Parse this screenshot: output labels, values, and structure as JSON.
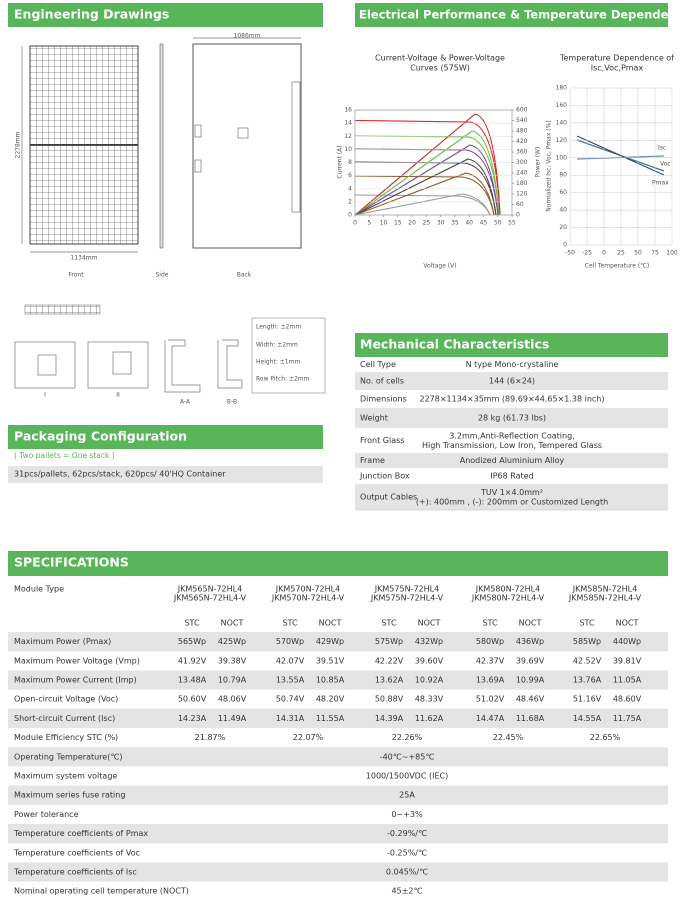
{
  "engineering_drawings": {
    "title": "Engineering Drawings",
    "dims": {
      "width_top": "1086mm",
      "height": "2278mm",
      "width_bottom": "1134mm"
    },
    "views": [
      "Front",
      "Side",
      "Back"
    ],
    "tolerances": [
      "Length: ±2mm",
      "Width: ±2mm",
      "Height: ±1mm",
      "Row Pitch: ±2mm"
    ],
    "detail_labels": [
      "I",
      "II",
      "A-A",
      "B-B"
    ]
  },
  "electrical": {
    "title": "Electrical Performance & Temperature Dependence",
    "iv_chart": {
      "title": [
        "Current-Voltage & Power-Voltage",
        "Curves (575W)"
      ],
      "y_label": "Current (A)",
      "y2_label": "Power (W)",
      "x_label": "Voltage (V)",
      "yticks": [
        0,
        2,
        4,
        6,
        8,
        10,
        12,
        14,
        16
      ],
      "y2ticks": [
        0,
        60,
        120,
        180,
        240,
        300,
        360,
        420,
        480,
        540,
        600
      ],
      "xticks": [
        0,
        5,
        10,
        15,
        20,
        25,
        30,
        35,
        40,
        45,
        50,
        55
      ]
    },
    "temp_chart": {
      "title": [
        "Temperature Dependence of",
        "Isc,Voc,Pmax"
      ],
      "y_label": "Normalized Isc, Voc, Pmax (%)",
      "x_label": "Cell Temperature (℃)",
      "yticks": [
        0,
        20,
        40,
        60,
        80,
        100,
        120,
        140,
        160,
        180
      ],
      "xticks": [
        -50,
        -25,
        0,
        25,
        50,
        75,
        100
      ],
      "series_labels": [
        "Isc",
        "Voc",
        "Pmax"
      ]
    }
  },
  "packaging": {
    "title": "Packaging Configuration",
    "note": "( Two pallets = One stack )",
    "text": "31pcs/pallets, 62pcs/stack, 620pcs/ 40'HQ Container"
  },
  "mechanical": {
    "title": "Mechanical Characteristics",
    "rows": [
      [
        "Cell Type",
        "N type Mono-crystaline"
      ],
      [
        "No. of cells",
        "144 (6×24)"
      ],
      [
        "Dimensions",
        "2278×1134×35mm (89.69×44.65×1.38 inch)"
      ],
      [
        "Weight",
        "28 kg (61.73 lbs)"
      ],
      [
        "Front Glass",
        "3.2mm,Anti-Reflection Coating,",
        "High Transmission, Low Iron, Tempered Glass"
      ],
      [
        "Frame",
        "Anodized Aluminium Alloy"
      ],
      [
        "Junction Box",
        "IP68 Rated"
      ],
      [
        "Output Cables",
        "TUV 1×4.0mm²",
        "(+): 400mm , (-): 200mm or Customized Length"
      ]
    ]
  },
  "specifications": {
    "title": "SPECIFICATIONS",
    "module_type_label": "Module Type",
    "models": [
      [
        "JKM565N-72HL4",
        "JKM565N-72HL4-V"
      ],
      [
        "JKM570N-72HL4",
        "JKM570N-72HL4-V"
      ],
      [
        "JKM575N-72HL4",
        "JKM575N-72HL4-V"
      ],
      [
        "JKM580N-72HL4",
        "JKM580N-72HL4-V"
      ],
      [
        "JKM585N-72HL4",
        "JKM585N-72HL4-V"
      ]
    ],
    "conditions": [
      "STC",
      "NOCT"
    ],
    "rows": [
      {
        "label": "Maximum Power (Pmax)",
        "values": [
          "565Wp",
          "425Wp",
          "570Wp",
          "429Wp",
          "575Wp",
          "432Wp",
          "580Wp",
          "436Wp",
          "585Wp",
          "440Wp"
        ]
      },
      {
        "label": "Maximum Power Voltage (Vmp)",
        "values": [
          "41.92V",
          "39.38V",
          "42.07V",
          "39.51V",
          "42.22V",
          "39.60V",
          "42.37V",
          "39.69V",
          "42.52V",
          "39.81V"
        ]
      },
      {
        "label": "Maximum Power Current (Imp)",
        "values": [
          "13.48A",
          "10.79A",
          "13.55A",
          "10.85A",
          "13.62A",
          "10.92A",
          "13.69A",
          "10.99A",
          "13.76A",
          "11.05A"
        ]
      },
      {
        "label": "Open-circuit Voltage (Voc)",
        "values": [
          "50.60V",
          "48.06V",
          "50.74V",
          "48.20V",
          "50.88V",
          "48.33V",
          "51.02V",
          "48.46V",
          "51.16V",
          "48.60V"
        ]
      },
      {
        "label": "Short-circuit Current (Isc)",
        "values": [
          "14.23A",
          "11.49A",
          "14.31A",
          "11.55A",
          "14.39A",
          "11.62A",
          "14.47A",
          "11.68A",
          "14.55A",
          "11.75A"
        ]
      }
    ],
    "efficiency": {
      "label": "Module Efficiency STC (%)",
      "values": [
        "21.87%",
        "22.07%",
        "22.26%",
        "22.45%",
        "22.65%"
      ]
    },
    "common_rows": [
      {
        "label": "Operating Temperature(℃)",
        "value": "-40℃~+85℃"
      },
      {
        "label": "Maximum system voltage",
        "value": "1000/1500VDC (IEC)"
      },
      {
        "label": "Maximum series fuse rating",
        "value": "25A"
      },
      {
        "label": "Power tolerance",
        "value": "0~+3%"
      },
      {
        "label": "Temperature coefficients of Pmax",
        "value": "-0.29%/℃"
      },
      {
        "label": "Temperature coefficients of Voc",
        "value": "-0.25%/℃"
      },
      {
        "label": "Temperature coefficients of Isc",
        "value": "0.045%/℃"
      },
      {
        "label": "Nominal operating cell temperature (NOCT)",
        "value": "45±2℃"
      }
    ]
  }
}
